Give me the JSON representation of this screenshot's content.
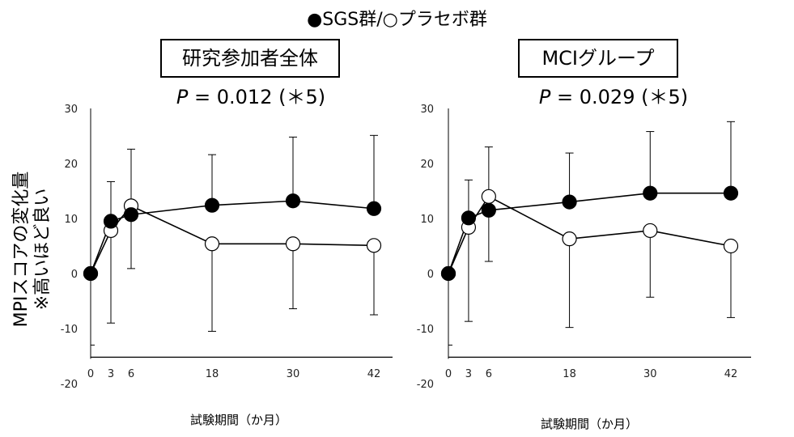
{
  "legend": {
    "text": "●SGS群/○プラセボ群"
  },
  "y_axis_label": {
    "line1": "MPIスコアの変化量",
    "line2": "※高いほど良い"
  },
  "chart_data": [
    {
      "type": "line",
      "title": "研究参加者全体",
      "p_value_label": "P",
      "p_value_text": "= 0.012 (＊5)",
      "xlabel": "試験期間（か月）",
      "ylabel": "MPIスコアの変化量 ※高いほど良い",
      "x": [
        0,
        3,
        6,
        18,
        30,
        42
      ],
      "x_tick_labels": [
        "0",
        "3",
        "6",
        "18",
        "30",
        "42"
      ],
      "y_tick_labels": [
        "30",
        "20",
        "10",
        "0",
        "-10",
        "-20"
      ],
      "ylim": [
        -20,
        30
      ],
      "grid": false,
      "series": [
        {
          "name": "SGS群",
          "marker": "filled-circle",
          "values": [
            0,
            9.5,
            10.7,
            12.4,
            13.2,
            11.8
          ],
          "error_bar_top": [
            null,
            16.7,
            22.6,
            21.6,
            24.8,
            25.1
          ]
        },
        {
          "name": "プラセボ群",
          "marker": "open-circle",
          "values": [
            0,
            7.8,
            12.3,
            5.4,
            5.4,
            5.1
          ],
          "error_bar_bottom": [
            null,
            -9.0,
            0.9,
            -10.5,
            -6.4,
            -7.5
          ]
        }
      ]
    },
    {
      "type": "line",
      "title": "MCIグループ",
      "p_value_label": "P",
      "p_value_text": "= 0.029 (＊5)",
      "xlabel": "試験期間（か月）",
      "ylabel": "MPIスコアの変化量 ※高いほど良い",
      "x": [
        0,
        3,
        6,
        18,
        30,
        42
      ],
      "x_tick_labels": [
        "0",
        "3",
        "6",
        "18",
        "30",
        "42"
      ],
      "y_tick_labels": [
        "30",
        "20",
        "10",
        "0",
        "-10",
        "-20"
      ],
      "ylim": [
        -20,
        30
      ],
      "grid": false,
      "series": [
        {
          "name": "SGS群",
          "marker": "filled-circle",
          "values": [
            0,
            10.1,
            11.5,
            13.0,
            14.6,
            14.6
          ],
          "error_bar_top": [
            null,
            17.0,
            23.0,
            21.9,
            25.8,
            27.6
          ]
        },
        {
          "name": "プラセボ群",
          "marker": "open-circle",
          "values": [
            0,
            8.4,
            14.0,
            6.3,
            7.8,
            5.0
          ],
          "error_bar_bottom": [
            null,
            -8.7,
            2.2,
            -9.8,
            -4.3,
            -8.0
          ]
        }
      ]
    }
  ]
}
